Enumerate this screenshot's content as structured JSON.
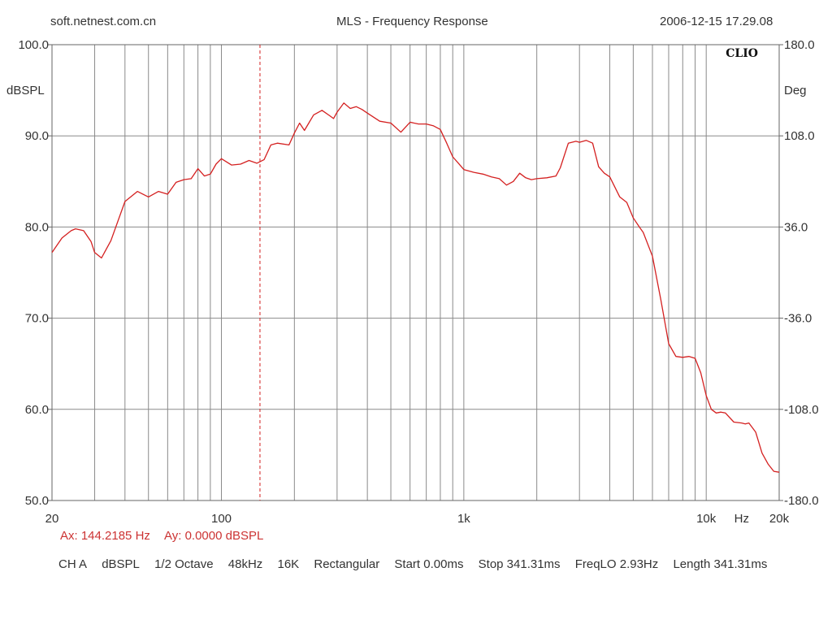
{
  "header": {
    "site": "soft.netnest.com.cn",
    "title": "MLS - Frequency Response",
    "timestamp": "2006-12-15 17.29.08"
  },
  "brand": "CLIO",
  "cursor": {
    "ax_label": "Ax: 144.2185 Hz",
    "ay_label": "Ay: 0.0000 dBSPL"
  },
  "footer": {
    "channel": "CH A",
    "unit": "dBSPL",
    "smoothing": "1/2 Octave",
    "rate": "48kHz",
    "size": "16K",
    "window": "Rectangular",
    "start": "Start 0.00ms",
    "stop": "Stop 341.31ms",
    "freqlo": "FreqLO 2.93Hz",
    "length": "Length 341.31ms"
  },
  "colors": {
    "curve": "#d42020",
    "grid": "#8a8a8a",
    "cursor": "#d42020"
  },
  "chart_data": {
    "type": "line",
    "title": "MLS - Frequency Response",
    "xscale": "log",
    "xlim": [
      20,
      20000
    ],
    "ylim": [
      50,
      100
    ],
    "y2lim": [
      -180,
      180
    ],
    "ylabel": "dBSPL",
    "y2label": "Deg",
    "xunit": "Hz",
    "x_ticks": [
      {
        "value": 20,
        "label": "20"
      },
      {
        "value": 100,
        "label": "100"
      },
      {
        "value": 1000,
        "label": "1k"
      },
      {
        "value": 10000,
        "label": "10k"
      },
      {
        "value": 20000,
        "label": "20k"
      }
    ],
    "y_ticks": [
      "50.0",
      "60.0",
      "70.0",
      "80.0",
      "90.0",
      "100.0"
    ],
    "y_tick_values": [
      50,
      60,
      70,
      80,
      90,
      100
    ],
    "y2_ticks": [
      "-180.0",
      "-108.0",
      "-36.0",
      "36.0",
      "108.0",
      "180.0"
    ],
    "cursor_x": 144.2185,
    "grid": true,
    "series": [
      {
        "x": [
          20,
          22,
          24,
          25,
          27,
          29,
          30,
          32,
          35,
          40,
          45,
          50,
          55,
          60,
          65,
          70,
          75,
          80,
          85,
          90,
          95,
          100,
          110,
          120,
          130,
          140,
          150,
          160,
          170,
          190,
          200,
          210,
          220,
          240,
          260,
          280,
          290,
          300,
          320,
          340,
          360,
          380,
          400,
          450,
          500,
          550,
          600,
          650,
          700,
          750,
          800,
          850,
          900,
          950,
          1000,
          1100,
          1200,
          1300,
          1400,
          1500,
          1600,
          1700,
          1800,
          1900,
          2000,
          2200,
          2400,
          2500,
          2700,
          2900,
          3000,
          3200,
          3400,
          3600,
          3800,
          4000,
          4400,
          4700,
          5000,
          5300,
          5500,
          6000,
          6500,
          7000,
          7500,
          8000,
          8500,
          9000,
          9500,
          10000,
          10500,
          11000,
          11500,
          12000,
          13000,
          14000,
          14500,
          15000,
          16000,
          17000,
          18000,
          19000,
          20000
        ],
        "y": [
          77.2,
          78.8,
          79.6,
          79.8,
          79.6,
          78.4,
          77.2,
          76.6,
          78.5,
          82.8,
          83.9,
          83.3,
          83.9,
          83.6,
          84.9,
          85.2,
          85.3,
          86.4,
          85.6,
          85.8,
          86.9,
          87.5,
          86.8,
          86.9,
          87.3,
          87.0,
          87.4,
          89.0,
          89.2,
          89.0,
          90.3,
          91.4,
          90.6,
          92.3,
          92.8,
          92.2,
          91.9,
          92.6,
          93.6,
          93.0,
          93.2,
          92.9,
          92.5,
          91.6,
          91.4,
          90.4,
          91.5,
          91.3,
          91.3,
          91.1,
          90.7,
          89.2,
          87.7,
          87.0,
          86.3,
          86.0,
          85.8,
          85.5,
          85.3,
          84.6,
          85.0,
          85.9,
          85.4,
          85.2,
          85.3,
          85.4,
          85.6,
          86.5,
          89.2,
          89.4,
          89.3,
          89.5,
          89.2,
          86.6,
          85.9,
          85.5,
          83.3,
          82.7,
          81.0,
          80.0,
          79.4,
          76.8,
          72.0,
          67.2,
          65.8,
          65.7,
          65.8,
          65.6,
          64.0,
          61.5,
          60.0,
          59.6,
          59.7,
          59.6,
          58.6,
          58.5,
          58.4,
          58.5,
          57.5,
          55.2,
          54.0,
          53.2,
          53.1
        ]
      }
    ]
  }
}
